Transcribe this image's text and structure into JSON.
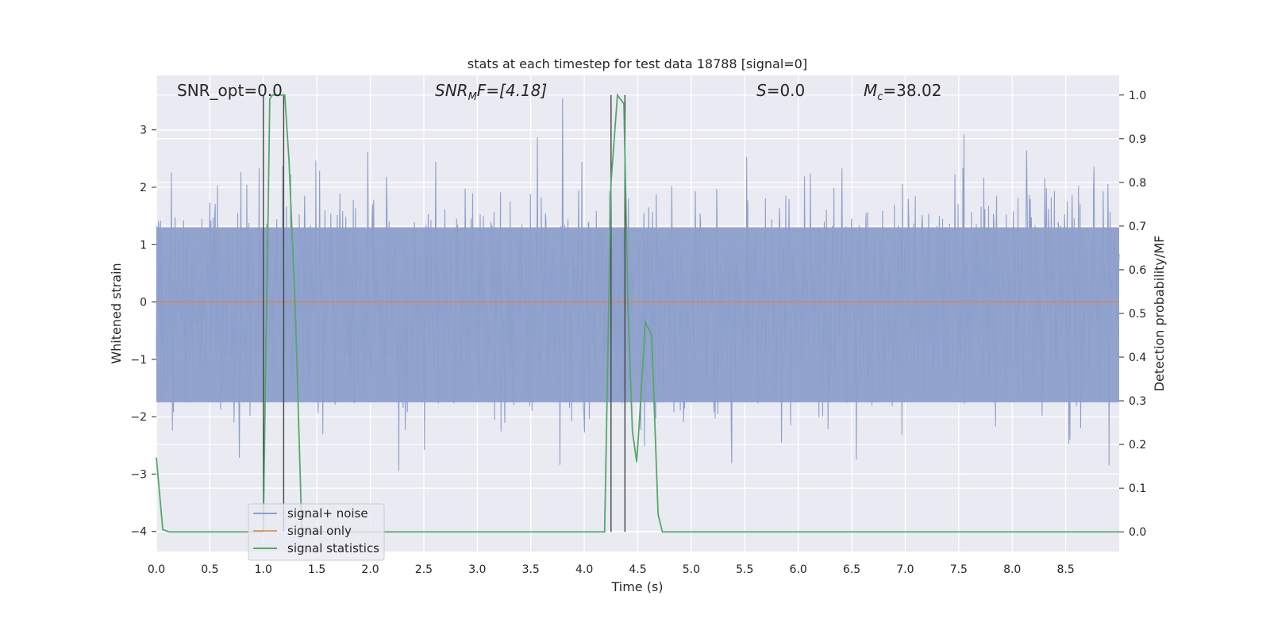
{
  "chart_data": {
    "type": "line",
    "title": "stats at each timestep for test data 18788 [signal=0]",
    "xlabel": "Time (s)",
    "ylabel_left": "Whitened strain",
    "ylabel_right": "Detection probability/MF",
    "xlim": [
      0.0,
      9.0
    ],
    "ylim_left": [
      -4.35,
      3.95
    ],
    "ylim_right": [
      -0.045,
      1.045
    ],
    "xticks": [
      0.0,
      0.5,
      1.0,
      1.5,
      2.0,
      2.5,
      3.0,
      3.5,
      4.0,
      4.5,
      5.0,
      5.5,
      6.0,
      6.5,
      7.0,
      7.5,
      8.0,
      8.5
    ],
    "xtick_labels": [
      "0.0",
      "0.5",
      "1.0",
      "1.5",
      "2.0",
      "2.5",
      "3.0",
      "3.5",
      "4.0",
      "4.5",
      "5.0",
      "5.5",
      "6.0",
      "6.5",
      "7.0",
      "7.5",
      "8.0",
      "8.5"
    ],
    "yticks_left": [
      -4,
      -3,
      -2,
      -1,
      0,
      1,
      2,
      3
    ],
    "ytick_labels_left": [
      "−4",
      "−3",
      "−2",
      "−1",
      "0",
      "1",
      "2",
      "3"
    ],
    "yticks_right": [
      0.0,
      0.1,
      0.2,
      0.3,
      0.4,
      0.5,
      0.6,
      0.7,
      0.8,
      0.9,
      1.0
    ],
    "ytick_labels_right": [
      "0.0",
      "0.1",
      "0.2",
      "0.3",
      "0.4",
      "0.5",
      "0.6",
      "0.7",
      "0.8",
      "0.9",
      "1.0"
    ],
    "grid": true,
    "legend_position": "lower-left",
    "annotations": {
      "snr_opt": "SNR_opt=0.0",
      "snr_mf_main": "SNR",
      "snr_mf_sub": "M",
      "snr_mf_rest": "F=[4.18]",
      "s_main": "S",
      "s_rest": "=0.0",
      "mc_main": "M",
      "mc_sub": "c",
      "mc_rest": "=38.02"
    },
    "series": [
      {
        "name": "signal+ noise",
        "axis": "left",
        "color": "#8da0cb",
        "kind": "noise",
        "duration_s": 9.0,
        "samples": 1800,
        "sigma": 0.95,
        "envelope": [
          -1.75,
          1.3
        ],
        "range": [
          -4.0,
          3.55
        ]
      },
      {
        "name": "signal only",
        "axis": "left",
        "color": "#dd8452",
        "x": [
          0.0,
          9.0
        ],
        "y": [
          0.0,
          0.0
        ]
      },
      {
        "name": "signal statistics",
        "axis": "right",
        "color": "#55a868",
        "x": [
          0.0,
          0.06,
          0.12,
          0.9,
          0.98,
          1.0,
          1.02,
          1.04,
          1.06,
          1.08,
          1.12,
          1.16,
          1.2,
          1.24,
          1.3,
          1.36,
          4.1,
          4.19,
          4.25,
          4.31,
          4.37,
          4.41,
          4.45,
          4.49,
          4.53,
          4.57,
          4.63,
          4.69,
          4.73,
          4.8,
          9.0
        ],
        "y": [
          0.17,
          0.005,
          0.0,
          0.0,
          0.0,
          0.0,
          0.36,
          0.65,
          0.99,
          1.0,
          1.0,
          1.0,
          1.0,
          0.85,
          0.5,
          0.0,
          0.0,
          0.0,
          0.8,
          1.0,
          0.98,
          0.5,
          0.23,
          0.16,
          0.31,
          0.48,
          0.45,
          0.04,
          0.0,
          0.0,
          0.0
        ]
      }
    ],
    "markers": [
      {
        "label": "",
        "x": 1.0,
        "color": "#444444"
      },
      {
        "label": "",
        "x": 1.19,
        "color": "#444444"
      },
      {
        "label": "",
        "x": 4.25,
        "color": "#444444"
      },
      {
        "label": "",
        "x": 4.38,
        "color": "#444444"
      }
    ]
  }
}
